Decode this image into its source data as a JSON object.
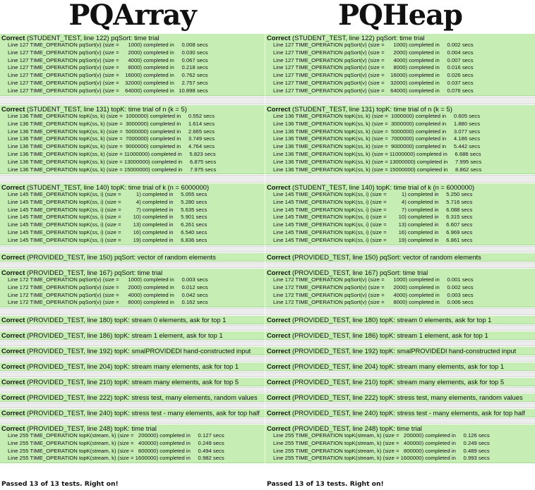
{
  "left": {
    "title": "PQArray",
    "summary": "Passed 13 of 13 tests. Right on!",
    "blocks": [
      {
        "status": "Correct",
        "header": " (STUDENT_TEST, line 122) pqSort: time trial",
        "lines": [
          "Line 127 TIME_OPERATION pqSort(v) (size =      1000) completed in     0.008 secs",
          "Line 127 TIME_OPERATION pqSort(v) (size =      2000) completed in     0.030 secs",
          "Line 127 TIME_OPERATION pqSort(v) (size =      4000) completed in     0.067 secs",
          "Line 127 TIME_OPERATION pqSort(v) (size =      8000) completed in     0.218 secs",
          "Line 127 TIME_OPERATION pqSort(v) (size =    16000) completed in     0.762 secs",
          "Line 127 TIME_OPERATION pqSort(v) (size =    32000) completed in     2.757 secs",
          "Line 127 TIME_OPERATION pqSort(v) (size =    64000) completed in   10.898 secs"
        ]
      },
      {
        "status": "Correct",
        "header": " (STUDENT_TEST, line 131) topK: time trial of n (k = 5)",
        "lines": [
          "Line 136 TIME_OPERATION topK(ss, k) (size =  1000000) completed in     0.552 secs",
          "Line 136 TIME_OPERATION topK(ss, k) (size =  3000000) completed in     1.614 secs",
          "Line 136 TIME_OPERATION topK(ss, k) (size =  5000000) completed in     2.665 secs",
          "Line 136 TIME_OPERATION topK(ss, k) (size =  7000000) completed in     3.749 secs",
          "Line 136 TIME_OPERATION topK(ss, k) (size =  9000000) completed in     4.764 secs",
          "Line 136 TIME_OPERATION topK(ss, k) (size = 11000000) completed in     5.823 secs",
          "Line 136 TIME_OPERATION topK(ss, k) (size = 13000000) completed in     6.875 secs",
          "Line 136 TIME_OPERATION topK(ss, k) (size = 15000000) completed in     7.975 secs"
        ]
      },
      {
        "status": "Correct",
        "header": " (STUDENT_TEST, line 140) topK: time trial of k (n = 6000000)",
        "lines": [
          "Line 145 TIME_OPERATION topK(ss, i) (size =          1) completed in     5.055 secs",
          "Line 145 TIME_OPERATION topK(ss, i) (size =          4) completed in     5.280 secs",
          "Line 145 TIME_OPERATION topK(ss, i) (size =          7) completed in     5.635 secs",
          "Line 145 TIME_OPERATION topK(ss, i) (size =        10) completed in     5.901 secs",
          "Line 145 TIME_OPERATION topK(ss, i) (size =        13) completed in     6.261 secs",
          "Line 145 TIME_OPERATION topK(ss, i) (size =        16) completed in     6.540 secs",
          "Line 145 TIME_OPERATION topK(ss, i) (size =        19) completed in     6.836 secs"
        ]
      },
      {
        "status": "Correct",
        "header": " (PROVIDED_TEST, line 150) pqSort: vector of random elements",
        "lines": []
      },
      {
        "status": "Correct",
        "header": " (PROVIDED_TEST, line 167) pqSort: time trial",
        "lines": [
          "Line 172 TIME_OPERATION pqSort(v) (size =      1000) completed in     0.003 secs",
          "Line 172 TIME_OPERATION pqSort(v) (size =      2000) completed in     0.012 secs",
          "Line 172 TIME_OPERATION pqSort(v) (size =      4000) completed in     0.042 secs",
          "Line 172 TIME_OPERATION pqSort(v) (size =      8000) completed in     0.162 secs"
        ]
      },
      {
        "status": "Correct",
        "header": " (PROVIDED_TEST, line 180) topK: stream 0 elements, ask for top 1",
        "lines": []
      },
      {
        "status": "Correct",
        "header": " (PROVIDED_TEST, line 186) topK: stream 1 element, ask for top 1",
        "lines": []
      },
      {
        "status": "Correct",
        "header": " (PROVIDED_TEST, line 192) topK: smalPROVIDEDl hand-constructed input",
        "lines": []
      },
      {
        "status": "Correct",
        "header": " (PROVIDED_TEST, line 204) topK: stream many elements, ask for top 1",
        "lines": []
      },
      {
        "status": "Correct",
        "header": " (PROVIDED_TEST, line 210) topK: stream many elements, ask for top 5",
        "lines": []
      },
      {
        "status": "Correct",
        "header": " (PROVIDED_TEST, line 222) topK: stress test, many elements, random values",
        "lines": []
      },
      {
        "status": "Correct",
        "header": " (PROVIDED_TEST, line 240) topK: stress test - many elements, ask for top half",
        "lines": []
      },
      {
        "status": "Correct",
        "header": " (PROVIDED_TEST, line 248) topK: time trial",
        "lines": [
          "Line 255 TIME_OPERATION topK(stream, k) (size =   200000) completed in     0.127 secs",
          "Line 255 TIME_OPERATION topK(stream, k) (size =   400000) completed in     0.249 secs",
          "Line 255 TIME_OPERATION topK(stream, k) (size =   800000) completed in     0.494 secs",
          "Line 255 TIME_OPERATION topK(stream, k) (size = 1600000) completed in     0.982 secs"
        ]
      }
    ]
  },
  "right": {
    "title": "PQHeap",
    "summary": "Passed 13 of 13 tests. Right on!",
    "blocks": [
      {
        "status": "Correct",
        "header": " (STUDENT_TEST, line 122) pqSort: time trial",
        "lines": [
          "Line 127 TIME_OPERATION pqSort(v) (size =      1000) completed in     0.002 secs",
          "Line 127 TIME_OPERATION pqSort(v) (size =      2000) completed in     0.004 secs",
          "Line 127 TIME_OPERATION pqSort(v) (size =      4000) completed in     0.007 secs",
          "Line 127 TIME_OPERATION pqSort(v) (size =      8000) completed in     0.016 secs",
          "Line 127 TIME_OPERATION pqSort(v) (size =    16000) completed in     0.026 secs",
          "Line 127 TIME_OPERATION pqSort(v) (size =    32000) completed in     0.037 secs",
          "Line 127 TIME_OPERATION pqSort(v) (size =    64000) completed in     0.076 secs"
        ]
      },
      {
        "status": "Correct",
        "header": " (STUDENT_TEST, line 131) topK: time trial of n (k = 5)",
        "lines": [
          "Line 136 TIME_OPERATION topK(ss, k) (size =  1000000) completed in     0.605 secs",
          "Line 136 TIME_OPERATION topK(ss, k) (size =  3000000) completed in     1.880 secs",
          "Line 136 TIME_OPERATION topK(ss, k) (size =  5000000) completed in     3.077 secs",
          "Line 136 TIME_OPERATION topK(ss, k) (size =  7000000) completed in     4.186 secs",
          "Line 136 TIME_OPERATION topK(ss, k) (size =  9000000) completed in     5.442 secs",
          "Line 136 TIME_OPERATION topK(ss, k) (size = 11000000) completed in     6.686 secs",
          "Line 136 TIME_OPERATION topK(ss, k) (size = 13000000) completed in     7.995 secs",
          "Line 136 TIME_OPERATION topK(ss, k) (size = 15000000) completed in     8.862 secs"
        ]
      },
      {
        "status": "Correct",
        "header": " (STUDENT_TEST, line 140) topK: time trial of k (n = 6000000)",
        "lines": [
          "Line 145 TIME_OPERATION topK(ss, i) (size =          1) completed in     5.250 secs",
          "Line 145 TIME_OPERATION topK(ss, i) (size =          4) completed in     5.716 secs",
          "Line 145 TIME_OPERATION topK(ss, i) (size =          7) completed in     6.088 secs",
          "Line 145 TIME_OPERATION topK(ss, i) (size =        10) completed in     6.315 secs",
          "Line 145 TIME_OPERATION topK(ss, i) (size =        13) completed in     6.607 secs",
          "Line 145 TIME_OPERATION topK(ss, i) (size =        16) completed in     6.969 secs",
          "Line 145 TIME_OPERATION topK(ss, i) (size =        19) completed in     6.861 secs"
        ]
      },
      {
        "status": "Correct",
        "header": " (PROVIDED_TEST, line 150) pqSort: vector of random elements",
        "lines": []
      },
      {
        "status": "Correct",
        "header": " (PROVIDED_TEST, line 167) pqSort: time trial",
        "lines": [
          "Line 172 TIME_OPERATION pqSort(v) (size =      1000) completed in     0.001 secs",
          "Line 172 TIME_OPERATION pqSort(v) (size =      2000) completed in     0.002 secs",
          "Line 172 TIME_OPERATION pqSort(v) (size =      4000) completed in     0.003 secs",
          "Line 172 TIME_OPERATION pqSort(v) (size =      8000) completed in     0.006 secs"
        ]
      },
      {
        "status": "Correct",
        "header": " (PROVIDED_TEST, line 180) topK: stream 0 elements, ask for top 1",
        "lines": []
      },
      {
        "status": "Correct",
        "header": " (PROVIDED_TEST, line 186) topK: stream 1 element, ask for top 1",
        "lines": []
      },
      {
        "status": "Correct",
        "header": " (PROVIDED_TEST, line 192) topK: smalPROVIDEDl hand-constructed input",
        "lines": []
      },
      {
        "status": "Correct",
        "header": " (PROVIDED_TEST, line 204) topK: stream many elements, ask for top 1",
        "lines": []
      },
      {
        "status": "Correct",
        "header": " (PROVIDED_TEST, line 210) topK: stream many elements, ask for top 5",
        "lines": []
      },
      {
        "status": "Correct",
        "header": " (PROVIDED_TEST, line 222) topK: stress test, many elements, random values",
        "lines": []
      },
      {
        "status": "Correct",
        "header": " (PROVIDED_TEST, line 240) topK: stress test - many elements, ask for top half",
        "lines": []
      },
      {
        "status": "Correct",
        "header": " (PROVIDED_TEST, line 248) topK: time trial",
        "lines": [
          "Line 255 TIME_OPERATION topK(stream, k) (size =   200000) completed in     0.126 secs",
          "Line 255 TIME_OPERATION topK(stream, k) (size =   400000) completed in     0.249 secs",
          "Line 255 TIME_OPERATION topK(stream, k) (size =   800000) completed in     0.489 secs",
          "Line 255 TIME_OPERATION topK(stream, k) (size = 1600000) completed in     0.993 secs"
        ]
      }
    ]
  }
}
